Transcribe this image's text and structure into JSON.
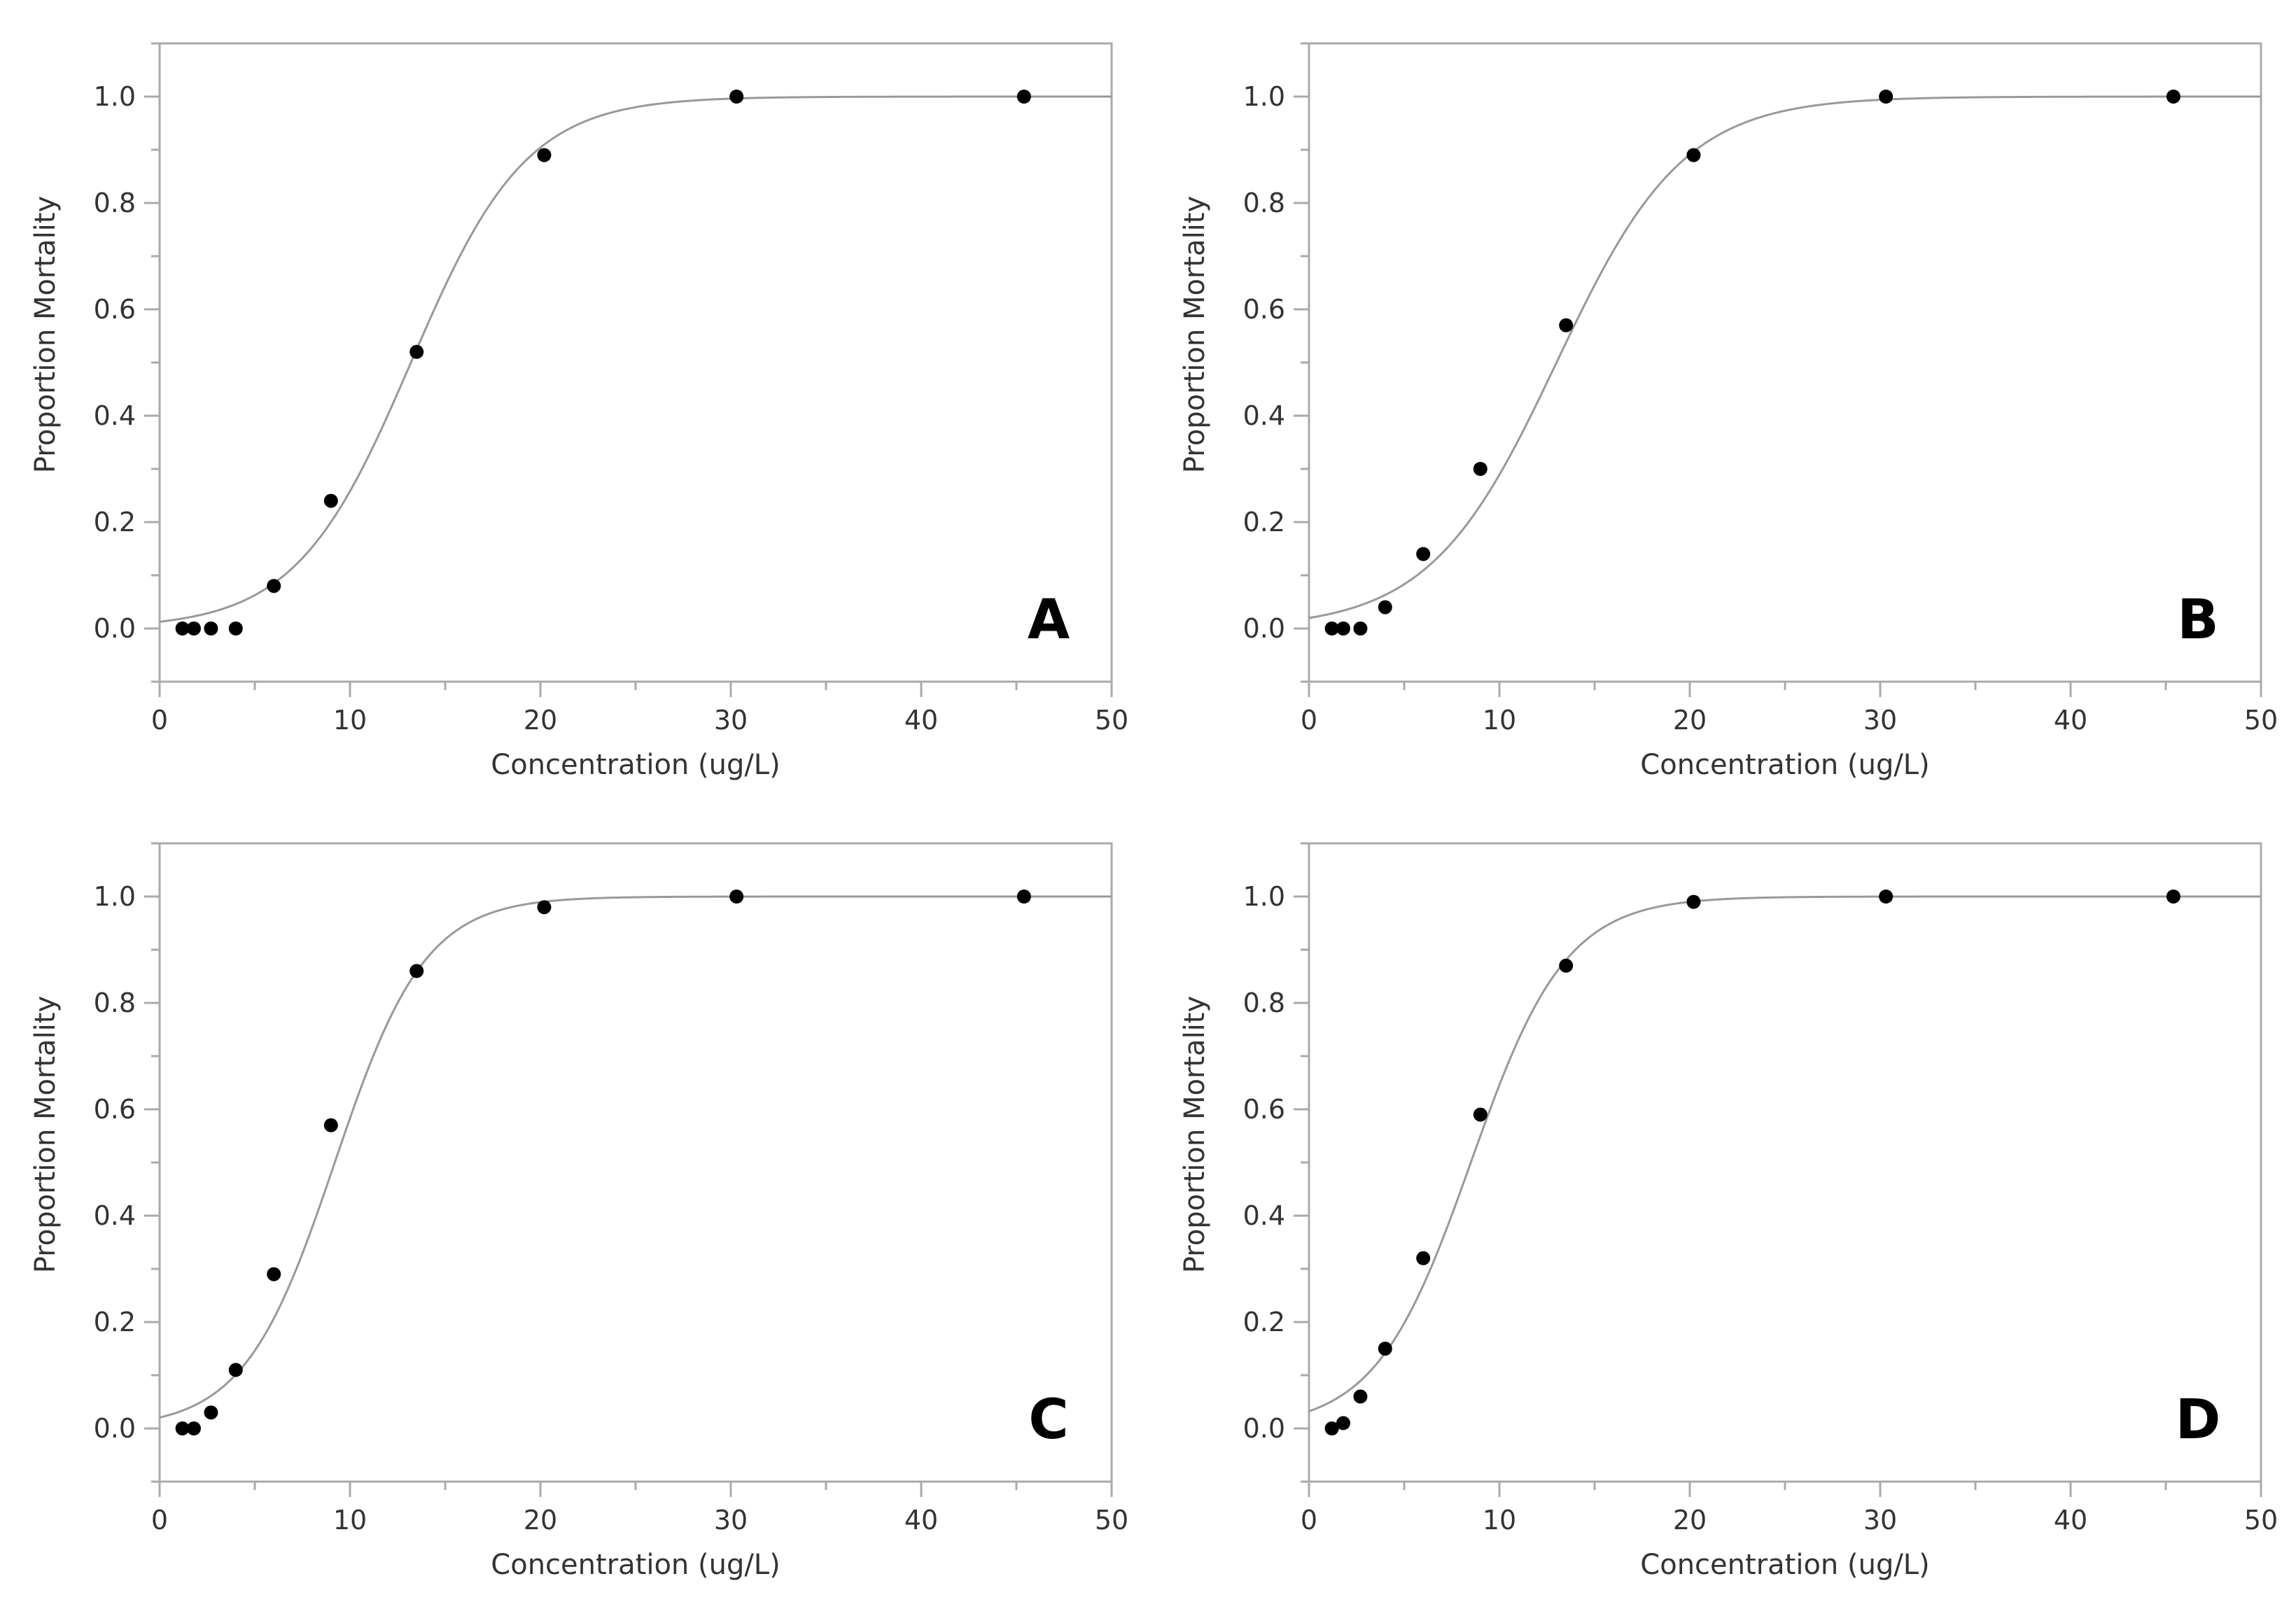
{
  "chart_data": [
    {
      "type": "scatter",
      "panel_label": "A",
      "xlabel": "Concentration (ug/L)",
      "ylabel": "Proportion Mortality",
      "xlim": [
        0,
        50
      ],
      "ylim": [
        -0.1,
        1.1
      ],
      "xticks": [
        0,
        10,
        20,
        30,
        40,
        50
      ],
      "yticks": [
        "0.0",
        "0.2",
        "0.4",
        "0.6",
        "0.8",
        "1.0"
      ],
      "grid": false,
      "series": [
        {
          "x": [
            1.2,
            1.8,
            2.7,
            4.0,
            6.0,
            9.0,
            13.5,
            20.2,
            30.3,
            45.4
          ],
          "y": [
            0.0,
            0.0,
            0.0,
            0.0,
            0.08,
            0.24,
            0.52,
            0.89,
            1.0,
            1.0
          ]
        }
      ],
      "fit": {
        "model": "logistic",
        "midpoint": 13.2,
        "slope": 0.33
      }
    },
    {
      "type": "scatter",
      "panel_label": "B",
      "xlabel": "Concentration (ug/L)",
      "ylabel": "Proportion Mortality",
      "xlim": [
        0,
        50
      ],
      "ylim": [
        -0.1,
        1.1
      ],
      "xticks": [
        0,
        10,
        20,
        30,
        40,
        50
      ],
      "yticks": [
        "0.0",
        "0.2",
        "0.4",
        "0.6",
        "0.8",
        "1.0"
      ],
      "grid": false,
      "series": [
        {
          "x": [
            1.2,
            1.8,
            2.7,
            4.0,
            6.0,
            9.0,
            13.5,
            20.2,
            30.3,
            45.4
          ],
          "y": [
            0.0,
            0.0,
            0.0,
            0.04,
            0.14,
            0.3,
            0.57,
            0.89,
            1.0,
            1.0
          ]
        }
      ],
      "fit": {
        "model": "logistic",
        "midpoint": 13.0,
        "slope": 0.3
      }
    },
    {
      "type": "scatter",
      "panel_label": "C",
      "xlabel": "Concentration (ug/L)",
      "ylabel": "Proportion Mortality",
      "xlim": [
        0,
        50
      ],
      "ylim": [
        -0.1,
        1.1
      ],
      "xticks": [
        0,
        10,
        20,
        30,
        40,
        50
      ],
      "yticks": [
        "0.0",
        "0.2",
        "0.4",
        "0.6",
        "0.8",
        "1.0"
      ],
      "grid": false,
      "series": [
        {
          "x": [
            1.2,
            1.8,
            2.7,
            4.0,
            6.0,
            9.0,
            13.5,
            20.2,
            30.3,
            45.4
          ],
          "y": [
            0.0,
            0.0,
            0.03,
            0.11,
            0.29,
            0.57,
            0.86,
            0.98,
            1.0,
            1.0
          ]
        }
      ],
      "fit": {
        "model": "logistic",
        "midpoint": 9.2,
        "slope": 0.42
      }
    },
    {
      "type": "scatter",
      "panel_label": "D",
      "xlabel": "Concentration (ug/L)",
      "ylabel": "Proportion Mortality",
      "xlim": [
        0,
        50
      ],
      "ylim": [
        -0.1,
        1.1
      ],
      "xticks": [
        0,
        10,
        20,
        30,
        40,
        50
      ],
      "yticks": [
        "0.0",
        "0.2",
        "0.4",
        "0.6",
        "0.8",
        "1.0"
      ],
      "grid": false,
      "series": [
        {
          "x": [
            1.2,
            1.8,
            2.7,
            4.0,
            6.0,
            9.0,
            13.5,
            20.2,
            30.3,
            45.4
          ],
          "y": [
            0.0,
            0.01,
            0.06,
            0.15,
            0.32,
            0.59,
            0.87,
            0.99,
            1.0,
            1.0
          ]
        }
      ],
      "fit": {
        "model": "logistic",
        "midpoint": 8.5,
        "slope": 0.4
      }
    }
  ],
  "colors": {
    "frame": "#aaaaaa",
    "curve": "#999999",
    "point": "#000000",
    "text": "#333333"
  }
}
